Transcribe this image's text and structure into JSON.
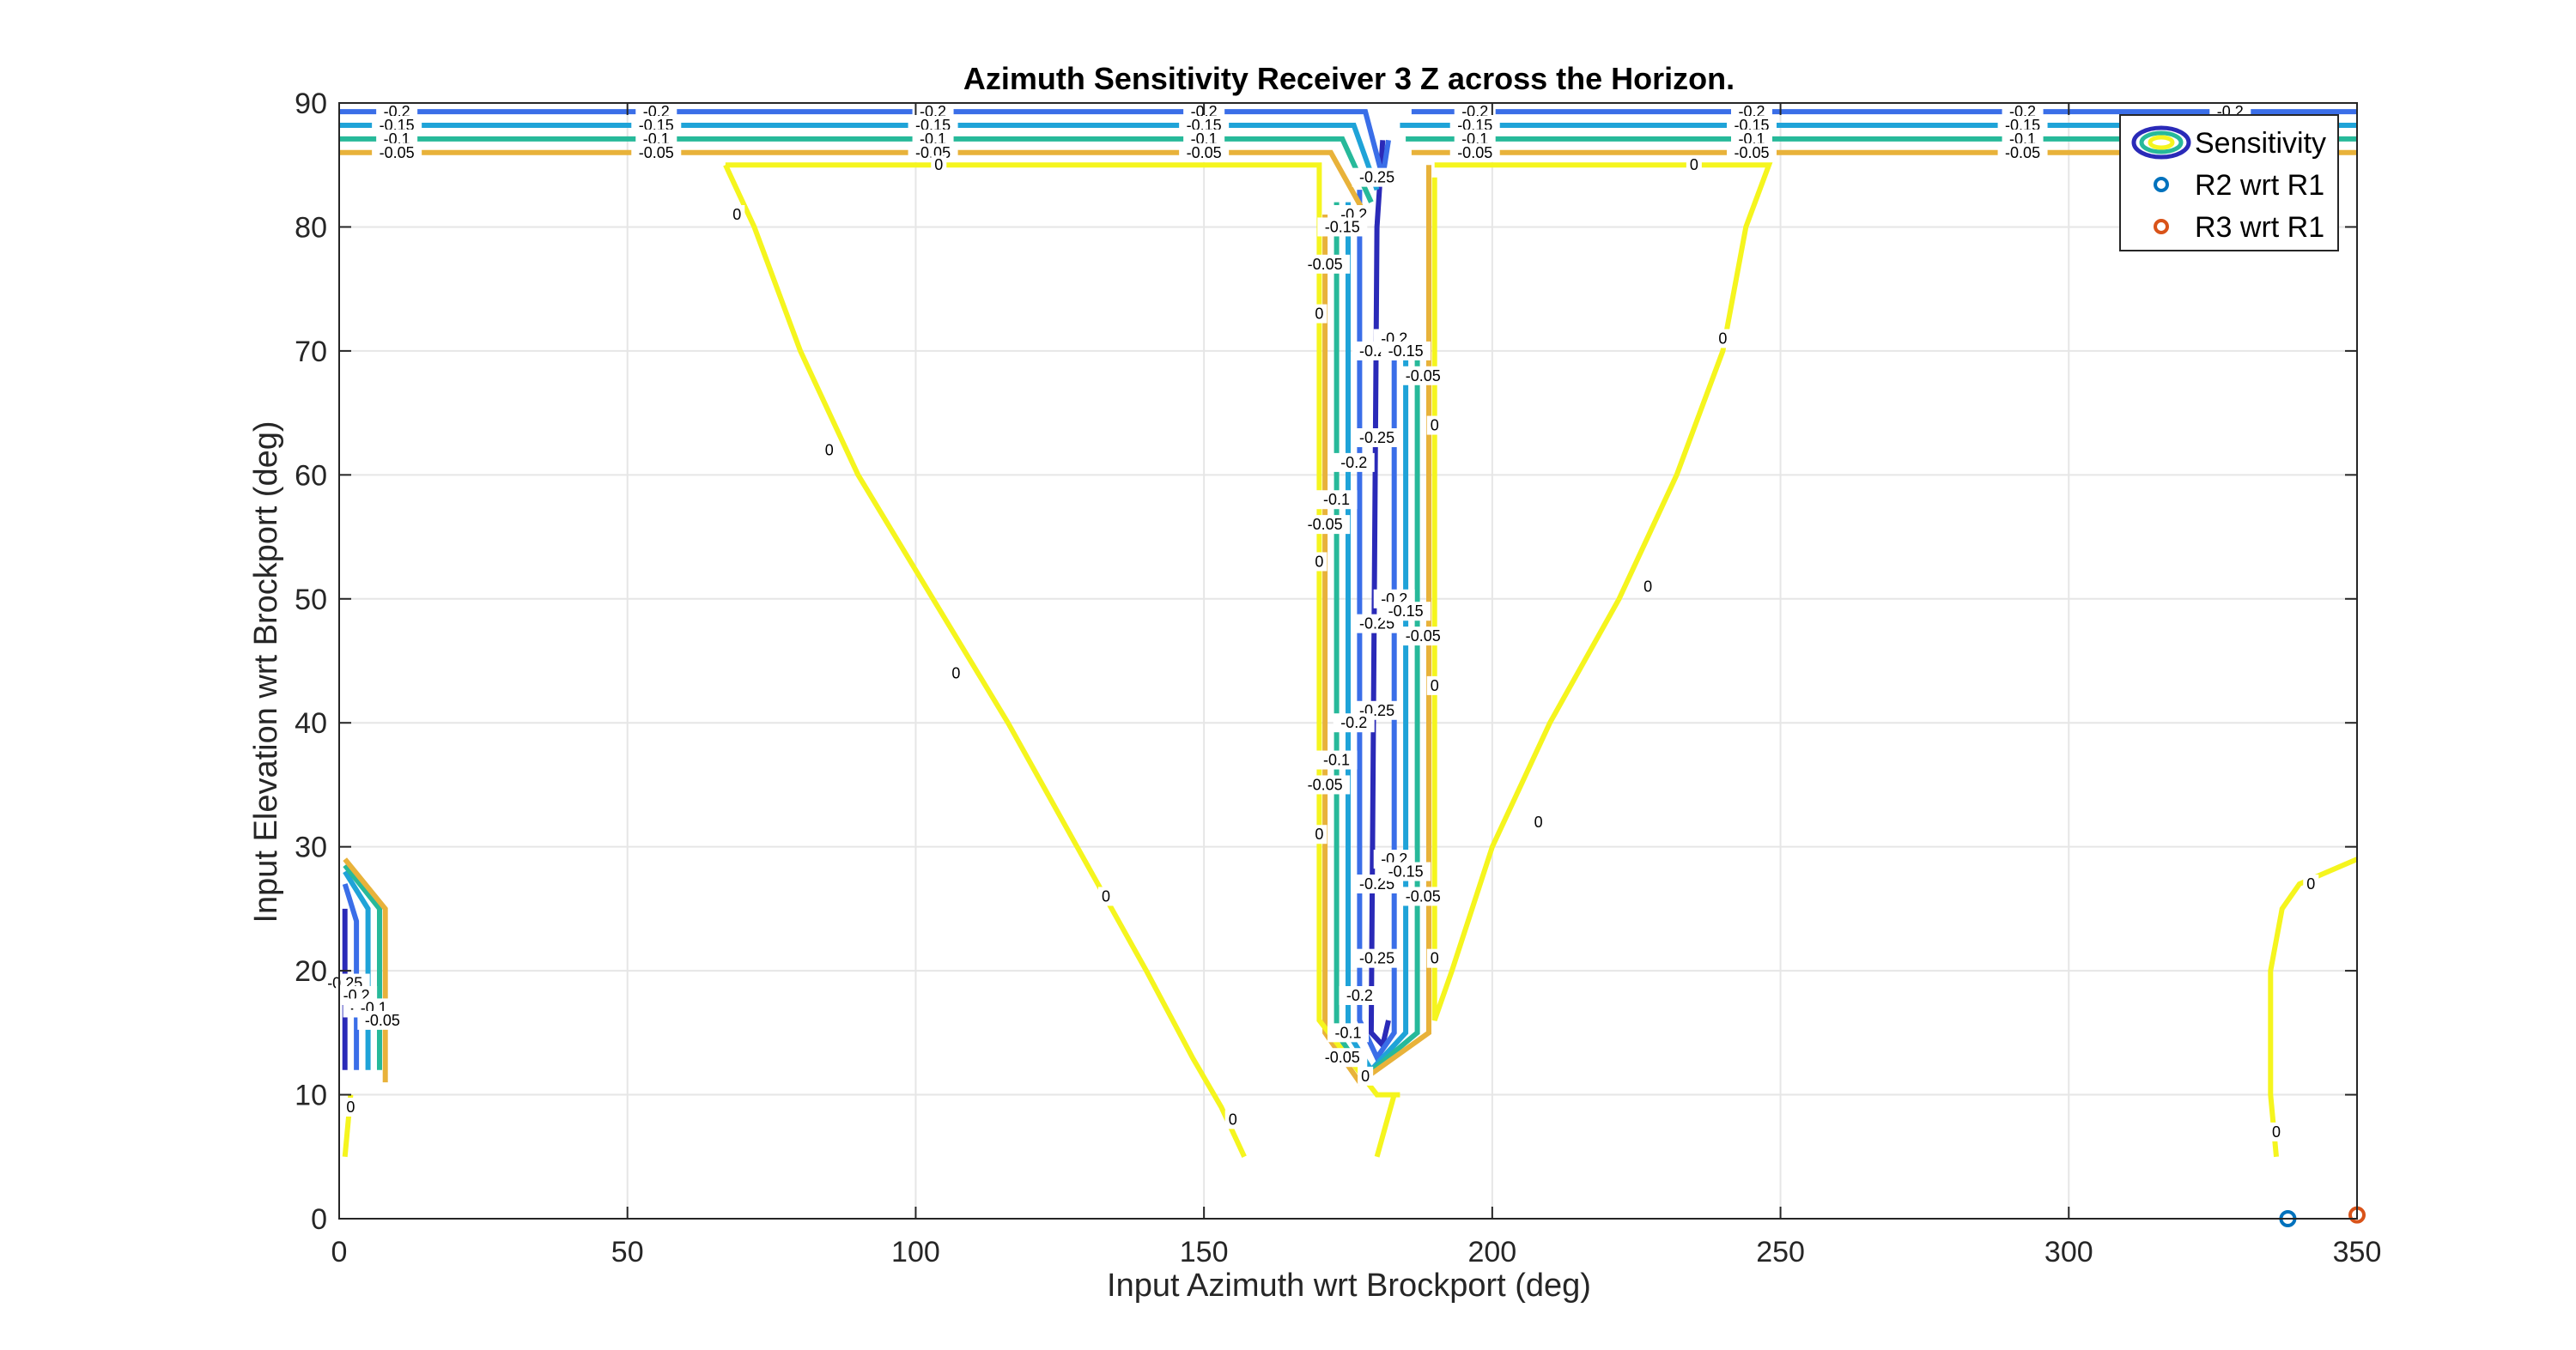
{
  "chart_data": {
    "type": "contour",
    "title": "Azimuth Sensitivity Receiver 3 Z across the Horizon.",
    "xlabel": "Input Azimuth wrt Brockport (deg)",
    "ylabel": "Input Elevation wrt Brockport (deg)",
    "xlim": [
      0,
      350
    ],
    "ylim": [
      0,
      90
    ],
    "xticks": [
      0,
      50,
      100,
      150,
      200,
      250,
      300,
      350
    ],
    "yticks": [
      0,
      10,
      20,
      30,
      40,
      50,
      60,
      70,
      80,
      90
    ],
    "grid": true,
    "legend": {
      "placement": "top-right",
      "entries": [
        "Sensitivity",
        "R2 wrt R1",
        "R3 wrt R1"
      ]
    },
    "colors": {
      "-0.25": "#2a2ab8",
      "-0.2": "#3a6ee8",
      "-0.15": "#1fa3d8",
      "-0.1": "#27b99a",
      "-0.05": "#e8b23a",
      "0": "#f5f51e",
      "R2 wrt R1": "#0072bd",
      "R3 wrt R1": "#d95319"
    },
    "contour_levels": [
      {
        "level": -0.25,
        "label": "-0.25",
        "segments": [
          [
            [
              181,
              87
            ],
            [
              180,
              80
            ],
            [
              179,
              15
            ],
            [
              181,
              14
            ],
            [
              182,
              16
            ]
          ],
          [
            [
              1,
              25
            ],
            [
              1,
              12
            ]
          ]
        ]
      },
      {
        "level": -0.2,
        "label": "-0.2",
        "segments": [
          [
            [
              0,
              89.3
            ],
            [
              178,
              89.3
            ],
            [
              181,
              84
            ],
            [
              182,
              87
            ]
          ],
          [
            [
              186,
              89.3
            ],
            [
              350,
              89.3
            ]
          ],
          [
            [
              177,
              83
            ],
            [
              177,
              16
            ],
            [
              180,
              13
            ],
            [
              183,
              15
            ],
            [
              183,
              70
            ]
          ],
          [
            [
              1,
              27
            ],
            [
              3,
              24
            ],
            [
              3,
              12
            ]
          ]
        ]
      },
      {
        "level": -0.15,
        "label": "-0.15",
        "segments": [
          [
            [
              0,
              88.2
            ],
            [
              176,
              88.2
            ],
            [
              180,
              83
            ]
          ],
          [
            [
              184,
              88.2
            ],
            [
              350,
              88.2
            ]
          ],
          [
            [
              175,
              82
            ],
            [
              175,
              15
            ],
            [
              179,
              12
            ],
            [
              185,
              15
            ],
            [
              185,
              70
            ]
          ],
          [
            [
              1,
              28
            ],
            [
              5,
              25
            ],
            [
              5,
              12
            ]
          ]
        ]
      },
      {
        "level": -0.1,
        "label": "-0.1",
        "segments": [
          [
            [
              0,
              87.1
            ],
            [
              174,
              87.1
            ],
            [
              179,
              82
            ]
          ],
          [
            [
              185,
              87.1
            ],
            [
              350,
              87.1
            ]
          ],
          [
            [
              173,
              82
            ],
            [
              173,
              15
            ],
            [
              178,
              11.5
            ],
            [
              187,
              15
            ],
            [
              187,
              70
            ]
          ],
          [
            [
              1,
              28.5
            ],
            [
              7,
              25
            ],
            [
              7,
              12
            ]
          ]
        ]
      },
      {
        "level": -0.05,
        "label": "-0.05",
        "segments": [
          [
            [
              0,
              86
            ],
            [
              172,
              86
            ],
            [
              178,
              81
            ]
          ],
          [
            [
              186,
              86
            ],
            [
              350,
              86
            ]
          ],
          [
            [
              171,
              81
            ],
            [
              171,
              15
            ],
            [
              177,
              11
            ],
            [
              189,
              15
            ],
            [
              189,
              85
            ]
          ],
          [
            [
              1,
              29
            ],
            [
              8,
              25
            ],
            [
              8,
              11
            ]
          ]
        ]
      },
      {
        "level": 0,
        "label": "0",
        "segments": [
          [
            [
              67,
              85
            ],
            [
              170,
              85
            ],
            [
              170,
              16
            ],
            [
              180,
              10
            ],
            [
              184,
              10
            ]
          ],
          [
            [
              183,
              10
            ],
            [
              180,
              5
            ]
          ],
          [
            [
              67,
              85
            ],
            [
              72,
              80
            ],
            [
              80,
              70
            ],
            [
              90,
              60
            ],
            [
              103,
              50
            ],
            [
              116,
              40
            ],
            [
              128,
              30
            ],
            [
              140,
              20
            ],
            [
              148,
              13
            ],
            [
              153,
              9
            ],
            [
              157,
              5
            ]
          ],
          [
            [
              190,
              84
            ],
            [
              190,
              16
            ],
            [
              193,
              20
            ],
            [
              200,
              30
            ],
            [
              210,
              40
            ],
            [
              222,
              50
            ],
            [
              232,
              60
            ],
            [
              240,
              70
            ],
            [
              244,
              80
            ],
            [
              248,
              85
            ],
            [
              190,
              85
            ]
          ],
          [
            [
              1,
              5
            ],
            [
              2,
              10
            ]
          ],
          [
            [
              336,
              5
            ],
            [
              335,
              10
            ],
            [
              335,
              20
            ],
            [
              337,
              25
            ],
            [
              340,
              27
            ],
            [
              350,
              29
            ]
          ]
        ]
      }
    ],
    "contour_labels": [
      {
        "text": "-0.2",
        "x": 10,
        "y": 89.3
      },
      {
        "text": "-0.15",
        "x": 10,
        "y": 88.2
      },
      {
        "text": "-0.1",
        "x": 10,
        "y": 87.1
      },
      {
        "text": "-0.05",
        "x": 10,
        "y": 86
      },
      {
        "text": "-0.2",
        "x": 55,
        "y": 89.3
      },
      {
        "text": "-0.15",
        "x": 55,
        "y": 88.2
      },
      {
        "text": "-0.1",
        "x": 55,
        "y": 87.1
      },
      {
        "text": "-0.05",
        "x": 55,
        "y": 86
      },
      {
        "text": "-0.2",
        "x": 103,
        "y": 89.3
      },
      {
        "text": "-0.15",
        "x": 103,
        "y": 88.2
      },
      {
        "text": "-0.1",
        "x": 103,
        "y": 87.1
      },
      {
        "text": "-0.05",
        "x": 103,
        "y": 86
      },
      {
        "text": "-0.2",
        "x": 150,
        "y": 89.3
      },
      {
        "text": "-0.15",
        "x": 150,
        "y": 88.2
      },
      {
        "text": "-0.1",
        "x": 150,
        "y": 87.1
      },
      {
        "text": "-0.05",
        "x": 150,
        "y": 86
      },
      {
        "text": "-0.2",
        "x": 197,
        "y": 89.3
      },
      {
        "text": "-0.15",
        "x": 197,
        "y": 88.2
      },
      {
        "text": "-0.1",
        "x": 197,
        "y": 87.1
      },
      {
        "text": "-0.05",
        "x": 197,
        "y": 86
      },
      {
        "text": "-0.2",
        "x": 245,
        "y": 89.3
      },
      {
        "text": "-0.15",
        "x": 245,
        "y": 88.2
      },
      {
        "text": "-0.1",
        "x": 245,
        "y": 87.1
      },
      {
        "text": "-0.05",
        "x": 245,
        "y": 86
      },
      {
        "text": "-0.2",
        "x": 292,
        "y": 89.3
      },
      {
        "text": "-0.15",
        "x": 292,
        "y": 88.2
      },
      {
        "text": "-0.1",
        "x": 292,
        "y": 87.1
      },
      {
        "text": "-0.05",
        "x": 292,
        "y": 86
      },
      {
        "text": "-0.2",
        "x": 328,
        "y": 89.3
      },
      {
        "text": "0",
        "x": 104,
        "y": 85
      },
      {
        "text": "0",
        "x": 235,
        "y": 85
      },
      {
        "text": "0",
        "x": 69,
        "y": 81
      },
      {
        "text": "0",
        "x": 85,
        "y": 62
      },
      {
        "text": "0",
        "x": 107,
        "y": 44
      },
      {
        "text": "0",
        "x": 133,
        "y": 26
      },
      {
        "text": "0",
        "x": 155,
        "y": 8
      },
      {
        "text": "0",
        "x": 240,
        "y": 71
      },
      {
        "text": "0",
        "x": 227,
        "y": 51
      },
      {
        "text": "0",
        "x": 208,
        "y": 32
      },
      {
        "text": "0",
        "x": 170,
        "y": 73
      },
      {
        "text": "0",
        "x": 170,
        "y": 53
      },
      {
        "text": "0",
        "x": 170,
        "y": 31
      },
      {
        "text": "0",
        "x": 190,
        "y": 64
      },
      {
        "text": "0",
        "x": 190,
        "y": 43
      },
      {
        "text": "0",
        "x": 190,
        "y": 21
      },
      {
        "text": "0",
        "x": 178,
        "y": 11.5
      },
      {
        "text": "0",
        "x": 2,
        "y": 9
      },
      {
        "text": "0",
        "x": 336,
        "y": 7
      },
      {
        "text": "0",
        "x": 342,
        "y": 27
      },
      {
        "text": "-0.25",
        "x": 180,
        "y": 84
      },
      {
        "text": "-0.25",
        "x": 180,
        "y": 70
      },
      {
        "text": "-0.25",
        "x": 180,
        "y": 63
      },
      {
        "text": "-0.25",
        "x": 180,
        "y": 48
      },
      {
        "text": "-0.25",
        "x": 180,
        "y": 41
      },
      {
        "text": "-0.25",
        "x": 180,
        "y": 27
      },
      {
        "text": "-0.25",
        "x": 180,
        "y": 21
      },
      {
        "text": "-0.2",
        "x": 176,
        "y": 81
      },
      {
        "text": "-0.15",
        "x": 174,
        "y": 80
      },
      {
        "text": "-0.05",
        "x": 171,
        "y": 77
      },
      {
        "text": "-0.05",
        "x": 171,
        "y": 56
      },
      {
        "text": "-0.05",
        "x": 171,
        "y": 35
      },
      {
        "text": "-0.2",
        "x": 176,
        "y": 61
      },
      {
        "text": "-0.1",
        "x": 173,
        "y": 58
      },
      {
        "text": "-0.2",
        "x": 176,
        "y": 40
      },
      {
        "text": "-0.1",
        "x": 173,
        "y": 37
      },
      {
        "text": "-0.2",
        "x": 183,
        "y": 71
      },
      {
        "text": "-0.15",
        "x": 185,
        "y": 70
      },
      {
        "text": "-0.05",
        "x": 188,
        "y": 68
      },
      {
        "text": "-0.2",
        "x": 183,
        "y": 50
      },
      {
        "text": "-0.15",
        "x": 185,
        "y": 49
      },
      {
        "text": "-0.05",
        "x": 188,
        "y": 47
      },
      {
        "text": "-0.2",
        "x": 183,
        "y": 29
      },
      {
        "text": "-0.15",
        "x": 185,
        "y": 28
      },
      {
        "text": "-0.05",
        "x": 188,
        "y": 26
      },
      {
        "text": "-0.2",
        "x": 177,
        "y": 18
      },
      {
        "text": "-0.1",
        "x": 175,
        "y": 15
      },
      {
        "text": "-0.05",
        "x": 174,
        "y": 13
      },
      {
        "text": "-0.25",
        "x": 1,
        "y": 19
      },
      {
        "text": "-0.2",
        "x": 3,
        "y": 18
      },
      {
        "text": "-0.15",
        "x": 5,
        "y": 17
      },
      {
        "text": "-0.1",
        "x": 6,
        "y": 17
      },
      {
        "text": "-0.05",
        "x": 7.5,
        "y": 16
      }
    ],
    "series": [
      {
        "name": "R2 wrt R1",
        "type": "scatter",
        "x": [
          338
        ],
        "y": [
          0
        ],
        "color": "#0072bd"
      },
      {
        "name": "R3 wrt R1",
        "type": "scatter",
        "x": [
          350
        ],
        "y": [
          0.3
        ],
        "color": "#d95319"
      }
    ]
  }
}
